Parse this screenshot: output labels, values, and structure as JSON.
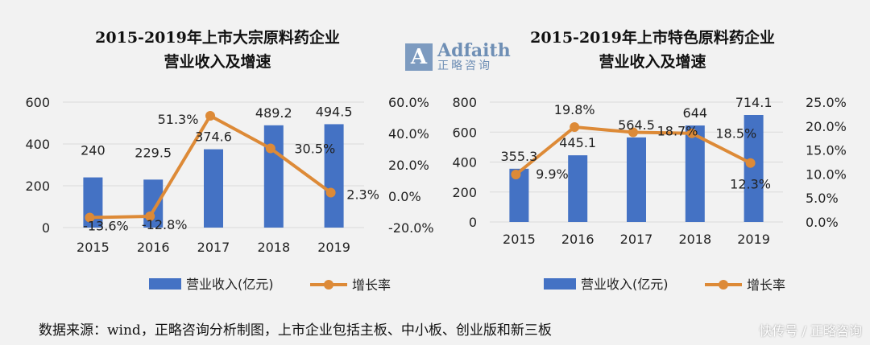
{
  "logo": {
    "en": "Adfaith",
    "cn": "正略咨询",
    "mark": "A"
  },
  "footer": "数据来源：wind，正略咨询分析制图，上市企业包括主板、中小板、创业版和新三板",
  "watermark": "快传号 / 正略咨询",
  "colors": {
    "bar": "#4472c4",
    "line": "#dd8a37",
    "grid": "#d9d9d9"
  },
  "chart_data": [
    {
      "type": "bar",
      "title_line1": "2015-2019年上市大宗原料药企业",
      "title_line2": "营业收入及增速",
      "categories": [
        "2015",
        "2016",
        "2017",
        "2018",
        "2019"
      ],
      "series": [
        {
          "name": "营业收入(亿元)",
          "type": "bar",
          "axis": "left",
          "values": [
            240,
            229.5,
            374.6,
            489.2,
            494.5
          ],
          "labels": [
            "240",
            "229.5",
            "374.6",
            "489.2",
            "494.5"
          ]
        },
        {
          "name": "增长率",
          "type": "line",
          "axis": "right",
          "values": [
            -13.6,
            -12.8,
            51.3,
            30.5,
            2.3
          ],
          "labels": [
            "-13.6%",
            "-12.8%",
            "51.3%",
            "30.5%",
            "2.3%"
          ]
        }
      ],
      "left_axis": {
        "ylim": [
          0,
          600
        ],
        "ticks": [
          "0",
          "200",
          "400",
          "600"
        ]
      },
      "right_axis": {
        "ylim": [
          -20,
          60
        ],
        "ticks": [
          "-20.0%",
          "0.0%",
          "20.0%",
          "40.0%",
          "60.0%"
        ]
      },
      "legend": "bottom"
    },
    {
      "type": "bar",
      "title_line1": "2015-2019年上市特色原料药企业",
      "title_line2": "营业收入及增速",
      "categories": [
        "2015",
        "2016",
        "2017",
        "2018",
        "2019"
      ],
      "series": [
        {
          "name": "营业收入(亿元)",
          "type": "bar",
          "axis": "left",
          "values": [
            355.3,
            445.1,
            564.5,
            644,
            714.1
          ],
          "labels": [
            "355.3",
            "445.1",
            "564.5",
            "644",
            "714.1"
          ]
        },
        {
          "name": "增长率",
          "type": "line",
          "axis": "right",
          "values": [
            9.9,
            19.8,
            18.7,
            18.5,
            12.3
          ],
          "labels": [
            "9.9%",
            "19.8%",
            "18.7%",
            "18.5%",
            "12.3%"
          ]
        }
      ],
      "left_axis": {
        "ylim": [
          0,
          800
        ],
        "ticks": [
          "0",
          "200",
          "400",
          "600",
          "800"
        ]
      },
      "right_axis": {
        "ylim": [
          0,
          25
        ],
        "ticks": [
          "0.0%",
          "5.0%",
          "10.0%",
          "15.0%",
          "20.0%",
          "25.0%"
        ]
      },
      "legend": "bottom"
    }
  ]
}
